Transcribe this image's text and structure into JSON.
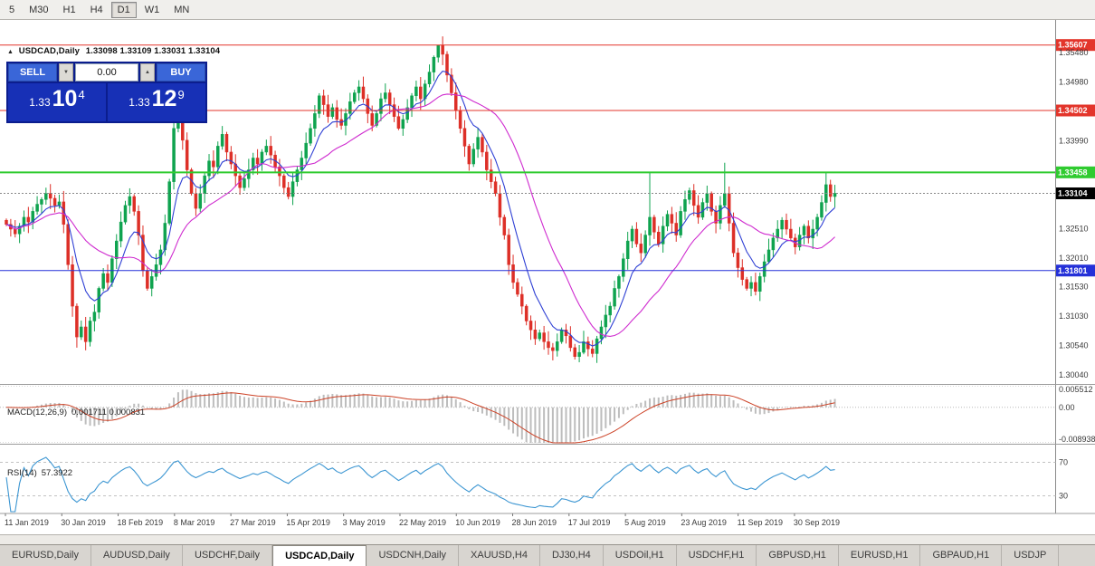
{
  "toolbar": {
    "timeframes": [
      "5",
      "M30",
      "H1",
      "H4",
      "D1",
      "W1",
      "MN"
    ],
    "active": "D1"
  },
  "header": {
    "symbol_period": "USDCAD,Daily",
    "ohlc": "1.33098 1.33109 1.33031 1.33104"
  },
  "trade_panel": {
    "sell_label": "SELL",
    "buy_label": "BUY",
    "lot_value": "0.00",
    "sell_price": {
      "small": "1.33",
      "big": "10",
      "sup": "4"
    },
    "buy_price": {
      "small": "1.33",
      "big": "12",
      "sup": "9"
    }
  },
  "indicators": {
    "macd": {
      "name": "MACD(12,26,9)",
      "values": "0.001711 0.000831",
      "axis_max": "0.005512",
      "axis_zero": "0.00",
      "axis_min": "-0.008938",
      "max": 0.005512,
      "min": -0.008938
    },
    "rsi": {
      "name": "RSI(14)",
      "value": "57.3922",
      "level_high": "70",
      "level_low": "30"
    }
  },
  "price_axis": {
    "labels": [
      "1.35480",
      "1.34980",
      "1.33990",
      "1.32510",
      "1.32010",
      "1.31530",
      "1.31030",
      "1.30540",
      "1.30040"
    ]
  },
  "date_axis": {
    "labels": [
      "11 Jan 2019",
      "30 Jan 2019",
      "18 Feb 2019",
      "8 Mar 2019",
      "27 Mar 2019",
      "15 Apr 2019",
      "3 May 2019",
      "22 May 2019",
      "10 Jun 2019",
      "28 Jun 2019",
      "17 Jul 2019",
      "5 Aug 2019",
      "23 Aug 2019",
      "11 Sep 2019",
      "30 Sep 2019"
    ]
  },
  "hlines": [
    {
      "price": 1.35607,
      "label": "1.35607",
      "color": "#e3352b",
      "width": 1
    },
    {
      "price": 1.34502,
      "label": "1.34502",
      "color": "#e3352b",
      "width": 1
    },
    {
      "price": 1.33458,
      "label": "1.33458",
      "color": "#2fcb2f",
      "width": 2
    },
    {
      "price": 1.31801,
      "label": "1.31801",
      "color": "#2430d8",
      "width": 1
    }
  ],
  "bid_line": {
    "price": 1.33104,
    "label": "1.33104",
    "color": "#000000"
  },
  "tabs": {
    "active_index": 3,
    "items": [
      "EURUSD,Daily",
      "AUDUSD,Daily",
      "USDCHF,Daily",
      "USDCAD,Daily",
      "USDCNH,Daily",
      "XAUUSD,H4",
      "DJ30,H4",
      "USDOil,H1",
      "USDCHF,H1",
      "GBPUSD,H1",
      "EURUSD,H1",
      "GBPAUD,H1",
      "USDJP"
    ]
  },
  "icons": {
    "collapse_arrow": "▲",
    "spin_up": "▲",
    "spin_down": "▼"
  },
  "chart_data": {
    "type": "candlestick",
    "symbol": "USDCAD",
    "period": "Daily",
    "last_bar": {
      "open": 1.33098,
      "high": 1.33109,
      "low": 1.33031,
      "close": 1.33104
    },
    "open_first": 1.3265,
    "closes": [
      1.3258,
      1.325,
      1.3242,
      1.3255,
      1.327,
      1.3262,
      1.328,
      1.3292,
      1.33,
      1.331,
      1.3302,
      1.329,
      1.3296,
      1.3258,
      1.319,
      1.312,
      1.3068,
      1.3085,
      1.306,
      1.3095,
      1.311,
      1.315,
      1.3175,
      1.316,
      1.32,
      1.323,
      1.3262,
      1.329,
      1.3305,
      1.328,
      1.324,
      1.318,
      1.315,
      1.317,
      1.319,
      1.3215,
      1.326,
      1.333,
      1.342,
      1.3445,
      1.34,
      1.335,
      1.331,
      1.3285,
      1.331,
      1.334,
      1.3365,
      1.3355,
      1.339,
      1.341,
      1.338,
      1.336,
      1.334,
      1.332,
      1.3335,
      1.335,
      1.337,
      1.336,
      1.338,
      1.339,
      1.3375,
      1.3355,
      1.334,
      1.332,
      1.3305,
      1.333,
      1.335,
      1.337,
      1.3395,
      1.342,
      1.3445,
      1.3475,
      1.346,
      1.344,
      1.3455,
      1.3435,
      1.3425,
      1.3445,
      1.3465,
      1.348,
      1.349,
      1.347,
      1.3445,
      1.3425,
      1.3445,
      1.347,
      1.348,
      1.346,
      1.344,
      1.342,
      1.3435,
      1.3455,
      1.3475,
      1.349,
      1.347,
      1.3495,
      1.3515,
      1.354,
      1.356,
      1.3545,
      1.351,
      1.348,
      1.345,
      1.342,
      1.339,
      1.336,
      1.3385,
      1.3405,
      1.338,
      1.335,
      1.333,
      1.331,
      1.327,
      1.324,
      1.319,
      1.316,
      1.314,
      1.312,
      1.3095,
      1.308,
      1.3065,
      1.3075,
      1.306,
      1.305,
      1.3045,
      1.306,
      1.308,
      1.307,
      1.305,
      1.3035,
      1.3042,
      1.306,
      1.3048,
      1.304,
      1.3065,
      1.3085,
      1.3105,
      1.312,
      1.315,
      1.317,
      1.32,
      1.323,
      1.325,
      1.3225,
      1.321,
      1.324,
      1.327,
      1.3245,
      1.3225,
      1.3255,
      1.3275,
      1.326,
      1.324,
      1.328,
      1.33,
      1.3315,
      1.329,
      1.327,
      1.3295,
      1.331,
      1.328,
      1.326,
      1.329,
      1.331,
      1.326,
      1.321,
      1.3185,
      1.3165,
      1.315,
      1.316,
      1.3145,
      1.317,
      1.3195,
      1.3215,
      1.3235,
      1.325,
      1.3265,
      1.325,
      1.3235,
      1.322,
      1.324,
      1.3255,
      1.3235,
      1.325,
      1.327,
      1.3295,
      1.3325,
      1.3305,
      1.33104
    ],
    "wick_overrides": {
      "16": {
        "low": 1.305
      },
      "38": {
        "high": 1.3455
      },
      "98": {
        "high": 1.35607
      },
      "123": {
        "low": 1.3038
      },
      "129": {
        "low": 1.303
      },
      "146": {
        "high": 1.3345
      },
      "163": {
        "high": 1.3362
      },
      "186": {
        "high": 1.3347
      }
    },
    "overlays": [
      {
        "name": "fast-ma",
        "type": "ema",
        "period": 8,
        "color": "#2e3fd4"
      },
      {
        "name": "slow-ma",
        "type": "sma",
        "period": 21,
        "color": "#cf2bcf"
      }
    ],
    "colors": {
      "up": "#0fa34f",
      "down": "#dd2f27",
      "histogram": "#bdbdbd",
      "signal": "#cc4125",
      "rsi": "#3c96d2",
      "grid_text": "#3a3a3a",
      "separator": "#9c9c9c"
    }
  }
}
